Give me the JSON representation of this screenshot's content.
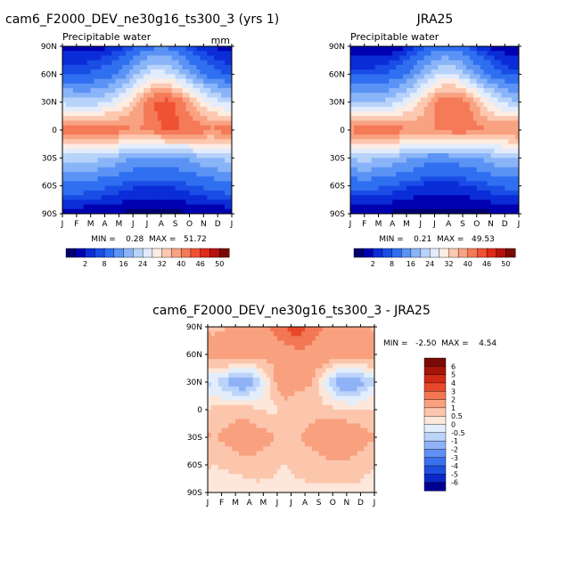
{
  "chart_data": [
    {
      "type": "heatmap",
      "title": "cam6_F2000_DEV_ne30g16_ts300_3 (yrs 1)",
      "subtitle": "Precipitable water",
      "units": "mm",
      "x_ticks": [
        "J",
        "F",
        "M",
        "A",
        "M",
        "J",
        "J",
        "A",
        "S",
        "O",
        "N",
        "D",
        "J"
      ],
      "y_ticks": [
        "90N",
        "60N",
        "30N",
        "0",
        "30S",
        "60S",
        "90S"
      ],
      "stats": "MIN =    0.28  MAX =   51.72",
      "colorbar_labels": [
        "2",
        "8",
        "16",
        "24",
        "32",
        "40",
        "46",
        "50"
      ],
      "levels": [
        2,
        4,
        6,
        8,
        12,
        16,
        20,
        24,
        28,
        32,
        36,
        40,
        44,
        46,
        48,
        50
      ],
      "colors": [
        "#000070",
        "#0000b0",
        "#0a2dd8",
        "#1a4de6",
        "#2f6ff0",
        "#5b93f5",
        "#8ab4f8",
        "#b8d3fa",
        "#e2ecfc",
        "#fdece2",
        "#fcc8b0",
        "#f9a282",
        "#f57a58",
        "#ef5233",
        "#e02a18",
        "#b8100c",
        "#7a0a06"
      ],
      "data": {
        "months": [
          "Jan",
          "Feb",
          "Mar",
          "Apr",
          "May",
          "Jun",
          "Jul",
          "Aug",
          "Sep",
          "Oct",
          "Nov",
          "Dec"
        ],
        "lat": [
          -90,
          -60,
          -30,
          0,
          30,
          60,
          90
        ],
        "values": [
          [
            2,
            2,
            2,
            2,
            1.5,
            1.5,
            1.5,
            1.5,
            1.5,
            2,
            2,
            2
          ],
          [
            10,
            10,
            9,
            8,
            7,
            6,
            6,
            6,
            7,
            8,
            9,
            10
          ],
          [
            22,
            22,
            21,
            19,
            17,
            15,
            14,
            15,
            16,
            18,
            20,
            21
          ],
          [
            43,
            45,
            45,
            43,
            41,
            40,
            42,
            45,
            44,
            43,
            41,
            42
          ],
          [
            22,
            21,
            22,
            25,
            30,
            38,
            45,
            46,
            42,
            33,
            27,
            23
          ],
          [
            8,
            8,
            9,
            11,
            15,
            21,
            26,
            25,
            19,
            14,
            10,
            8
          ],
          [
            3,
            3,
            3,
            4,
            6,
            9,
            11,
            11,
            8,
            5,
            4,
            3
          ]
        ]
      }
    },
    {
      "type": "heatmap",
      "title": "JRA25",
      "subtitle": "Precipitable water",
      "x_ticks": [
        "J",
        "F",
        "M",
        "A",
        "M",
        "J",
        "J",
        "A",
        "S",
        "O",
        "N",
        "D",
        "J"
      ],
      "y_ticks": [
        "90N",
        "60N",
        "30N",
        "0",
        "30S",
        "60S",
        "90S"
      ],
      "stats": "MIN =    0.21  MAX =   49.53",
      "colorbar_labels": [
        "2",
        "8",
        "16",
        "24",
        "32",
        "40",
        "46",
        "50"
      ],
      "levels": [
        2,
        4,
        6,
        8,
        12,
        16,
        20,
        24,
        28,
        32,
        36,
        40,
        44,
        46,
        48,
        50
      ],
      "colors": [
        "#000070",
        "#0000b0",
        "#0a2dd8",
        "#1a4de6",
        "#2f6ff0",
        "#5b93f5",
        "#8ab4f8",
        "#b8d3fa",
        "#e2ecfc",
        "#fdece2",
        "#fcc8b0",
        "#f9a282",
        "#f57a58",
        "#ef5233",
        "#e02a18",
        "#b8100c",
        "#7a0a06"
      ],
      "data": {
        "months": [
          "Jan",
          "Feb",
          "Mar",
          "Apr",
          "May",
          "Jun",
          "Jul",
          "Aug",
          "Sep",
          "Oct",
          "Nov",
          "Dec"
        ],
        "lat": [
          -90,
          -60,
          -30,
          0,
          30,
          60,
          90
        ],
        "values": [
          [
            1.5,
            1.5,
            1.5,
            1.5,
            1,
            1,
            1,
            1,
            1,
            1.5,
            1.5,
            1.5
          ],
          [
            9,
            9,
            8,
            7,
            6,
            5,
            5,
            5,
            6,
            7,
            8,
            9
          ],
          [
            21,
            21,
            20,
            18,
            16,
            14,
            13,
            14,
            15,
            17,
            19,
            20
          ],
          [
            42,
            43,
            44,
            42,
            40,
            39,
            41,
            43,
            42,
            41,
            40,
            41
          ],
          [
            20,
            20,
            21,
            24,
            29,
            36,
            43,
            44,
            40,
            31,
            25,
            21
          ],
          [
            7,
            7,
            8,
            10,
            14,
            20,
            25,
            24,
            18,
            13,
            9,
            7
          ],
          [
            2,
            2,
            2,
            3,
            5,
            8,
            10,
            10,
            7,
            4,
            3,
            2
          ]
        ]
      }
    },
    {
      "type": "heatmap",
      "title": "cam6_F2000_DEV_ne30g16_ts300_3 - JRA25",
      "x_ticks": [
        "J",
        "F",
        "M",
        "A",
        "M",
        "J",
        "J",
        "A",
        "S",
        "O",
        "N",
        "D",
        "J"
      ],
      "y_ticks": [
        "90N",
        "60N",
        "30N",
        "0",
        "30S",
        "60S",
        "90S"
      ],
      "stats": "MIN =   -2.50  MAX =    4.54",
      "colorbar_labels": [
        "6",
        "5",
        "4",
        "3",
        "2",
        "1",
        "0.5",
        "0",
        "-0.5",
        "-1",
        "-2",
        "-3",
        "-4",
        "-5",
        "-6"
      ],
      "levels": [
        -6,
        -5,
        -4,
        -3,
        -2,
        -1,
        -0.5,
        0,
        0.5,
        1,
        2,
        3,
        4,
        5,
        6
      ],
      "colors": [
        "#000090",
        "#0a28c8",
        "#1f4fe0",
        "#3a70ee",
        "#6190f4",
        "#8fb2f7",
        "#bcd3fa",
        "#e3eefc",
        "#fde7da",
        "#fcc6ad",
        "#f9a07f",
        "#f27752",
        "#e8492a",
        "#cf2a14",
        "#a81408",
        "#7a0a06"
      ],
      "data": {
        "months": [
          "Jan",
          "Feb",
          "Mar",
          "Apr",
          "May",
          "Jun",
          "Jul",
          "Aug",
          "Sep",
          "Oct",
          "Nov",
          "Dec"
        ],
        "lat": [
          -90,
          -60,
          -30,
          0,
          30,
          60,
          90
        ],
        "values": [
          [
            0.3,
            0.2,
            0.2,
            0.3,
            0.4,
            0.3,
            0.4,
            0.4,
            0.3,
            0.3,
            0.4,
            0.3
          ],
          [
            0.5,
            0.6,
            0.7,
            0.8,
            0.6,
            0.5,
            0.6,
            0.7,
            0.8,
            0.9,
            0.8,
            0.6
          ],
          [
            1.0,
            1.2,
            1.5,
            1.3,
            1.1,
            0.9,
            1.0,
            1.2,
            1.6,
            1.8,
            1.5,
            1.1
          ],
          [
            0.6,
            0.7,
            0.8,
            0.6,
            0.4,
            0.5,
            0.6,
            0.8,
            0.7,
            0.6,
            0.5,
            0.6
          ],
          [
            -0.5,
            -1.2,
            -1.8,
            -1.0,
            0.5,
            1.8,
            1.2,
            1.0,
            -0.3,
            -1.5,
            -1.8,
            -0.8
          ],
          [
            1.5,
            1.7,
            1.8,
            1.5,
            1.2,
            1.3,
            1.5,
            1.7,
            1.6,
            1.5,
            1.4,
            1.5
          ],
          [
            0.8,
            1.0,
            1.2,
            1.5,
            2.0,
            3.0,
            4.0,
            2.5,
            1.8,
            1.5,
            1.2,
            1.0
          ]
        ]
      }
    }
  ]
}
